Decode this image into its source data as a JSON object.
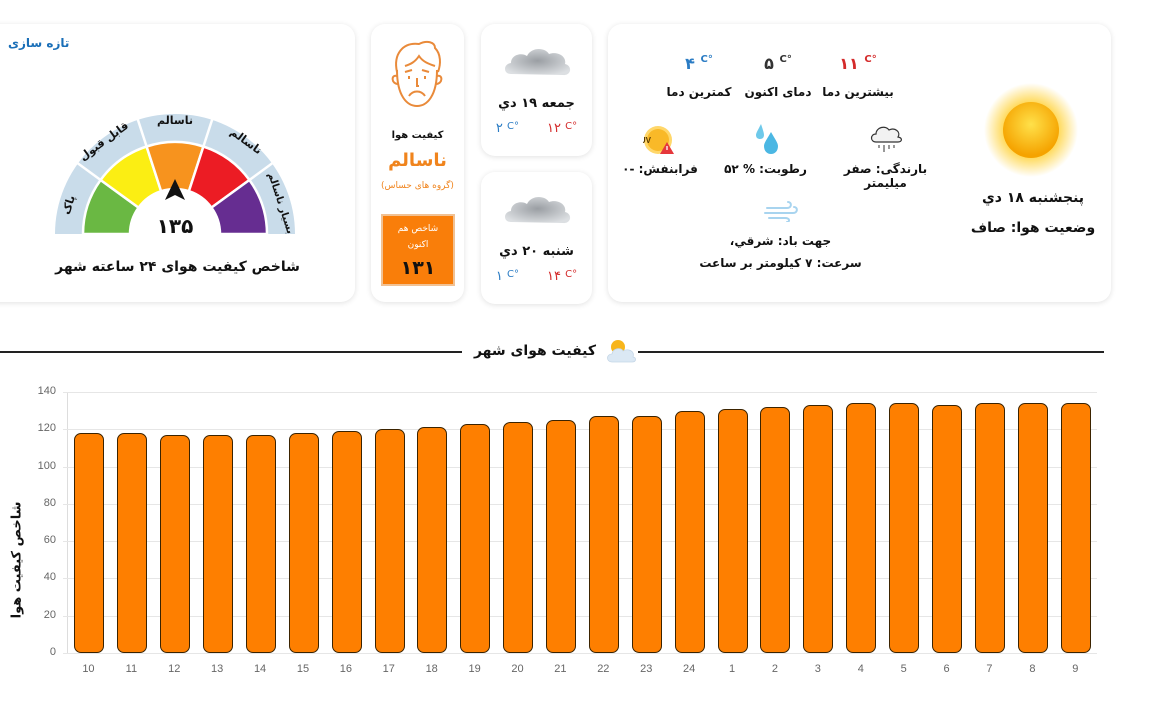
{
  "gauge_card": {
    "refresh_label": "تازه سازی",
    "segments": [
      {
        "label": "پاک",
        "color": "#6ab843"
      },
      {
        "label": "قابل قبول",
        "color": "#fbee13"
      },
      {
        "label": "ناسالم",
        "sublabel": "(گروه های حساس)",
        "color": "#f7931e"
      },
      {
        "label": "ناسالم",
        "color": "#ec1c24"
      },
      {
        "label": "بسیار ناسالم",
        "color": "#662d91"
      }
    ],
    "value": "۱۳۵",
    "title": "شاخص کیفیت هوای ۲۴ ساعته شهر"
  },
  "aqi_card": {
    "icon": "sad-face-icon",
    "label": "کیفیت هوا",
    "status": "ناسالم",
    "group": "(گروه های حساس)",
    "now_label": "شاخص هم اکنون",
    "now_value": "۱۳۱",
    "accent": "#f97e0a"
  },
  "forecast": [
    {
      "day": "جمعه ۱۹ دي",
      "max": "۱۲",
      "min": "۲",
      "unit": "C°",
      "icon": "cloud-icon"
    },
    {
      "day": "شنبه ۲۰ دي",
      "max": "۱۴",
      "min": "۱",
      "unit": "C°",
      "icon": "cloud-icon"
    }
  ],
  "current": {
    "icon": "sun-icon",
    "day": "پنجشنبه ۱۸ دي",
    "condition": "وضعیت هوا: صاف",
    "max_temp": {
      "value": "۱۱",
      "unit": "C°",
      "label": "بیشترین دما",
      "color": "#d42b2b"
    },
    "now_temp": {
      "value": "۵",
      "unit": "C°",
      "label": "دمای اکنون",
      "color": "#333333"
    },
    "min_temp": {
      "value": "۴",
      "unit": "C°",
      "label": "کمترین دما",
      "color": "#2b7cc4"
    },
    "precipitation": "بارندگی: صفر میلیمتر",
    "humidity": "رطوبت: % ۵۲",
    "uv": "فرابنفش: -۰",
    "wind_direction": "جهت باد: شرقي،",
    "wind_speed": "سرعت: ۷ کیلومتر بر ساعت"
  },
  "section": {
    "title": "کیفیت هوای شهر",
    "icon": "partly-cloudy-icon"
  },
  "chart_data": {
    "type": "bar",
    "title": "",
    "xlabel": "",
    "ylabel": "شاخص کیفیت هوا",
    "ylim": [
      0,
      140
    ],
    "yticks": [
      "140",
      "120",
      "100",
      "80",
      "60",
      "40",
      "20",
      "0"
    ],
    "grid": true,
    "legend": "none",
    "bar_color": "#fe7f00",
    "categories": [
      "10",
      "11",
      "12",
      "13",
      "14",
      "15",
      "16",
      "17",
      "18",
      "19",
      "20",
      "21",
      "22",
      "23",
      "24",
      "1",
      "2",
      "3",
      "4",
      "5",
      "6",
      "7",
      "8",
      "9"
    ],
    "values": [
      118,
      118,
      117,
      117,
      117,
      118,
      119,
      120,
      121,
      123,
      124,
      125,
      127,
      127,
      130,
      131,
      132,
      133,
      134,
      134,
      133,
      134,
      134,
      134
    ]
  }
}
